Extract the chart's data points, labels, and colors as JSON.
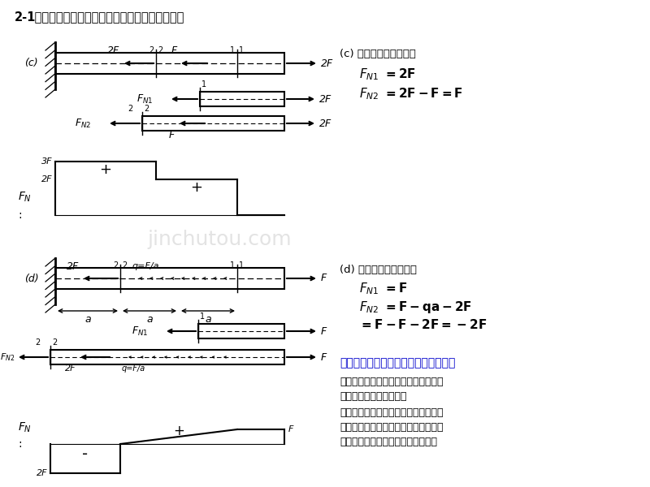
{
  "title_bold": "2-1",
  "title_rest": " 画以下各杆的轴力图，并求指定截面上的内力。",
  "bg_color": "#ffffff",
  "text_color": "#000000",
  "blue_color": "#0000cc",
  "watermark": "jinchutou.com",
  "c_right_header": "(c) 如图取隔离体，有：",
  "d_right_header": "(d) 如图取隔离体，有：",
  "note_header": "可由受力与轴力图的特点，检查内力图",
  "note_line1": "轴力图在集中载荷作用处有突变，突变",
  "note_line2": "值与集中力的大小相等；",
  "note_line3": "在分布载荷作用处轴力图斜率的值等于",
  "note_line4": "该处分布载荷的分布集度大小，则分布",
  "note_line5": "载荷的起点和终点处为轴力图折点。"
}
